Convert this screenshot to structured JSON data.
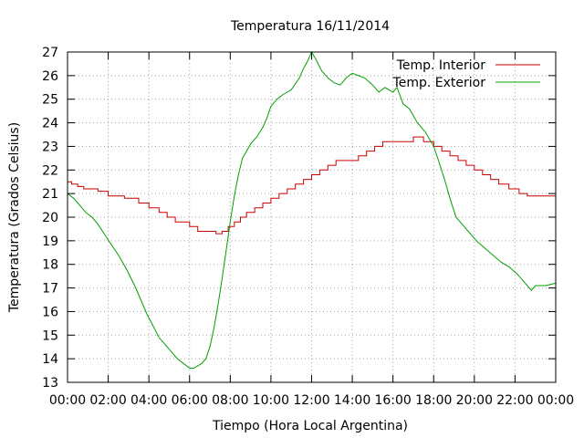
{
  "chart_data": {
    "type": "line",
    "title": "Temperatura 16/11/2014",
    "xlabel": "Tiempo (Hora Local Argentina)",
    "ylabel": "Temperatura (Grados Celsius)",
    "xlim": [
      0,
      24
    ],
    "ylim": [
      13,
      27
    ],
    "x_tick_labels": [
      "00:00",
      "02:00",
      "04:00",
      "06:00",
      "08:00",
      "10:00",
      "12:00",
      "14:00",
      "16:00",
      "18:00",
      "20:00",
      "22:00",
      "00:00"
    ],
    "y_ticks": [
      13,
      14,
      15,
      16,
      17,
      18,
      19,
      20,
      21,
      22,
      23,
      24,
      25,
      26,
      27
    ],
    "grid": true,
    "legend_position": "top-right",
    "series": [
      {
        "name": "Temp. Interior",
        "color": "#cc0000",
        "step": true,
        "x": [
          0,
          0.2,
          0.5,
          0.8,
          1.5,
          2.0,
          2.8,
          3.5,
          4.0,
          4.5,
          4.9,
          5.3,
          6.0,
          6.4,
          7.3,
          7.6,
          7.9,
          8.2,
          8.5,
          8.8,
          9.2,
          9.6,
          10.0,
          10.4,
          10.8,
          11.2,
          11.6,
          12.0,
          12.4,
          12.8,
          13.2,
          14.3,
          14.7,
          15.1,
          15.5,
          17.0,
          17.5,
          18.0,
          18.4,
          18.8,
          19.2,
          19.6,
          20.0,
          20.4,
          20.8,
          21.2,
          21.7,
          22.2,
          22.6,
          23.1,
          24.0
        ],
        "y": [
          21.5,
          21.4,
          21.3,
          21.2,
          21.1,
          20.9,
          20.8,
          20.6,
          20.4,
          20.2,
          20.0,
          19.8,
          19.6,
          19.4,
          19.3,
          19.4,
          19.6,
          19.8,
          20.0,
          20.2,
          20.4,
          20.6,
          20.8,
          21.0,
          21.2,
          21.4,
          21.6,
          21.8,
          22.0,
          22.2,
          22.4,
          22.6,
          22.8,
          23.0,
          23.2,
          23.4,
          23.2,
          23.0,
          22.8,
          22.6,
          22.4,
          22.2,
          22.0,
          21.8,
          21.6,
          21.4,
          21.2,
          21.0,
          20.9,
          20.9,
          20.9
        ]
      },
      {
        "name": "Temp. Exterior",
        "color": "#00a000",
        "step": false,
        "x": [
          0,
          0.3,
          0.6,
          0.9,
          1.2,
          1.5,
          1.8,
          2.1,
          2.5,
          2.9,
          3.3,
          3.6,
          3.9,
          4.2,
          4.5,
          4.8,
          5.1,
          5.4,
          5.7,
          6.0,
          6.2,
          6.4,
          6.6,
          6.8,
          7.0,
          7.2,
          7.4,
          7.6,
          7.8,
          8.0,
          8.2,
          8.4,
          8.6,
          8.8,
          9.0,
          9.3,
          9.6,
          9.8,
          10.0,
          10.3,
          10.6,
          11.0,
          11.4,
          11.6,
          11.8,
          12.0,
          12.2,
          12.5,
          12.8,
          13.1,
          13.4,
          13.7,
          14.0,
          14.3,
          14.6,
          15.0,
          15.3,
          15.6,
          15.8,
          16.0,
          16.2,
          16.5,
          16.8,
          17.0,
          17.2,
          17.4,
          17.6,
          17.8,
          18.0,
          18.2,
          18.5,
          18.8,
          19.1,
          19.4,
          19.6,
          19.8,
          20.1,
          20.5,
          20.9,
          21.3,
          21.7,
          22.1,
          22.5,
          22.8,
          23.0,
          23.5,
          24.0
        ],
        "y": [
          21.0,
          20.8,
          20.5,
          20.2,
          20.0,
          19.7,
          19.3,
          18.9,
          18.4,
          17.8,
          17.1,
          16.5,
          15.9,
          15.4,
          14.9,
          14.6,
          14.3,
          14.0,
          13.8,
          13.6,
          13.6,
          13.7,
          13.8,
          14.0,
          14.5,
          15.3,
          16.3,
          17.4,
          18.6,
          19.8,
          20.9,
          21.8,
          22.5,
          22.8,
          23.1,
          23.4,
          23.8,
          24.2,
          24.7,
          25.0,
          25.2,
          25.4,
          25.9,
          26.3,
          26.6,
          27.0,
          26.7,
          26.2,
          25.9,
          25.7,
          25.6,
          25.9,
          26.1,
          26.0,
          25.9,
          25.6,
          25.3,
          25.5,
          25.4,
          25.3,
          25.5,
          24.8,
          24.6,
          24.3,
          24.0,
          23.8,
          23.6,
          23.3,
          23.0,
          22.5,
          21.7,
          20.8,
          20.0,
          19.7,
          19.5,
          19.3,
          19.0,
          18.7,
          18.4,
          18.1,
          17.9,
          17.6,
          17.2,
          16.9,
          17.1,
          17.1,
          17.2
        ]
      }
    ]
  }
}
